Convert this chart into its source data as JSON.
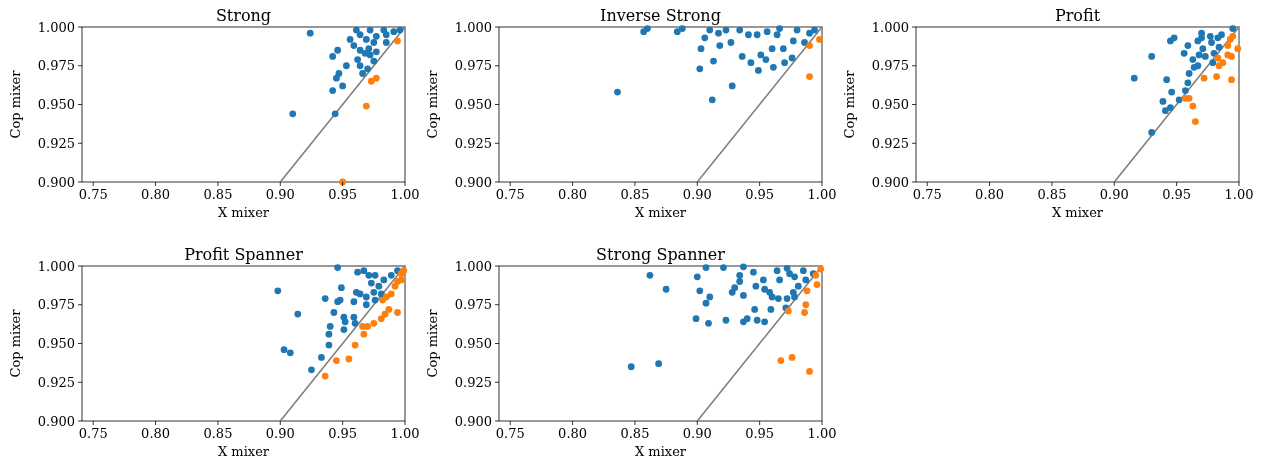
{
  "chart_data": [
    {
      "type": "scatter",
      "marker": "circle",
      "title": "Strong",
      "xlabel": "X mixer",
      "ylabel": "Cop mixer",
      "xlim": [
        0.741,
        1.0
      ],
      "ylim": [
        0.9,
        1.0
      ],
      "xticks": [
        {
          "value": 0.75,
          "label": "0.75"
        },
        {
          "value": 0.8,
          "label": "0.80"
        },
        {
          "value": 0.85,
          "label": "0.85"
        },
        {
          "value": 0.9,
          "label": "0.90"
        },
        {
          "value": 0.95,
          "label": "0.95"
        },
        {
          "value": 1.0,
          "label": "1.00"
        }
      ],
      "yticks": [
        {
          "value": 0.9,
          "label": "0.900"
        },
        {
          "value": 0.925,
          "label": "0.925"
        },
        {
          "value": 0.95,
          "label": "0.950"
        },
        {
          "value": 0.975,
          "label": "0.975"
        },
        {
          "value": 1.0,
          "label": "1.000"
        }
      ],
      "series": [
        {
          "color": "#1f77b4",
          "x": [
            0.924,
            0.91,
            0.944,
            0.942,
            0.95,
            0.945,
            0.947,
            0.953,
            0.942,
            0.946,
            0.966,
            0.97,
            0.964,
            0.962,
            0.975,
            0.972,
            0.956,
            0.959,
            0.964,
            0.969,
            0.975,
            0.977,
            0.964,
            0.971,
            0.985,
            0.985,
            0.991,
            0.961,
            0.972,
            0.983,
            0.996,
            0.977,
            0.968
          ],
          "values": [
            0.996,
            0.944,
            0.944,
            0.959,
            0.962,
            0.967,
            0.97,
            0.975,
            0.981,
            0.985,
            0.97,
            0.973,
            0.975,
            0.979,
            0.978,
            0.982,
            0.992,
            0.988,
            0.995,
            0.992,
            0.99,
            0.994,
            0.985,
            0.986,
            0.995,
            0.99,
            0.997,
            0.998,
            0.998,
            0.998,
            0.998,
            0.984,
            0.983
          ]
        },
        {
          "color": "#ff7f0e",
          "x": [
            0.994,
            0.973,
            0.977,
            0.969,
            0.95
          ],
          "values": [
            0.991,
            0.965,
            0.967,
            0.949,
            0.9
          ]
        },
        {
          "type": "line",
          "marker": "none",
          "color": "#808080",
          "x": [
            0.9,
            1.0
          ],
          "values": [
            0.9,
            1.0
          ]
        }
      ]
    },
    {
      "type": "scatter",
      "marker": "circle",
      "title": "Inverse Strong",
      "xlabel": "X mixer",
      "ylabel": "Cop mixer",
      "xlim": [
        0.741,
        1.0
      ],
      "ylim": [
        0.9,
        1.0
      ],
      "xticks": [
        {
          "value": 0.75,
          "label": "0.75"
        },
        {
          "value": 0.8,
          "label": "0.80"
        },
        {
          "value": 0.85,
          "label": "0.85"
        },
        {
          "value": 0.9,
          "label": "0.90"
        },
        {
          "value": 0.95,
          "label": "0.95"
        },
        {
          "value": 1.0,
          "label": "1.00"
        }
      ],
      "yticks": [
        {
          "value": 0.9,
          "label": "0.900"
        },
        {
          "value": 0.925,
          "label": "0.925"
        },
        {
          "value": 0.95,
          "label": "0.950"
        },
        {
          "value": 0.975,
          "label": "0.975"
        },
        {
          "value": 1.0,
          "label": "1.000"
        }
      ],
      "series": [
        {
          "color": "#1f77b4",
          "x": [
            0.836,
            0.912,
            0.928,
            0.902,
            0.913,
            0.903,
            0.906,
            0.917,
            0.918,
            0.927,
            0.936,
            0.943,
            0.949,
            0.951,
            0.955,
            0.961,
            0.97,
            0.96,
            0.969,
            0.977,
            0.976,
            0.986,
            0.964,
            0.956,
            0.948,
            0.941,
            0.934,
            0.923,
            0.91,
            0.884,
            0.857,
            0.86,
            0.888,
            0.98,
            0.99,
            0.994,
            0.966
          ],
          "values": [
            0.958,
            0.953,
            0.962,
            0.973,
            0.978,
            0.986,
            0.993,
            0.996,
            0.988,
            0.99,
            0.981,
            0.977,
            0.972,
            0.982,
            0.979,
            0.974,
            0.977,
            0.986,
            0.986,
            0.991,
            0.98,
            0.99,
            0.995,
            0.997,
            0.995,
            0.995,
            0.998,
            0.998,
            0.998,
            0.997,
            0.997,
            0.999,
            0.999,
            0.998,
            0.996,
            0.998,
            0.999
          ]
        },
        {
          "color": "#ff7f0e",
          "x": [
            0.998,
            0.99,
            0.99
          ],
          "values": [
            0.992,
            0.988,
            0.968
          ]
        },
        {
          "type": "line",
          "marker": "none",
          "color": "#808080",
          "x": [
            0.9,
            1.0
          ],
          "values": [
            0.9,
            1.0
          ]
        }
      ]
    },
    {
      "type": "scatter",
      "marker": "circle",
      "title": "Profit",
      "xlabel": "X mixer",
      "ylabel": "Cop mixer",
      "xlim": [
        0.741,
        1.0
      ],
      "ylim": [
        0.9,
        1.0
      ],
      "xticks": [
        {
          "value": 0.75,
          "label": "0.75"
        },
        {
          "value": 0.8,
          "label": "0.80"
        },
        {
          "value": 0.85,
          "label": "0.85"
        },
        {
          "value": 0.9,
          "label": "0.90"
        },
        {
          "value": 0.95,
          "label": "0.95"
        },
        {
          "value": 1.0,
          "label": "1.00"
        }
      ],
      "yticks": [
        {
          "value": 0.9,
          "label": "0.900"
        },
        {
          "value": 0.925,
          "label": "0.925"
        },
        {
          "value": 0.95,
          "label": "0.950"
        },
        {
          "value": 0.975,
          "label": "0.975"
        },
        {
          "value": 1.0,
          "label": "1.000"
        }
      ],
      "series": [
        {
          "color": "#1f77b4",
          "x": [
            0.916,
            0.93,
            0.93,
            0.939,
            0.941,
            0.942,
            0.945,
            0.946,
            0.945,
            0.948,
            0.952,
            0.957,
            0.959,
            0.96,
            0.956,
            0.959,
            0.964,
            0.967,
            0.968,
            0.967,
            0.97,
            0.97,
            0.971,
            0.973,
            0.977,
            0.978,
            0.98,
            0.983,
            0.986,
            0.984,
            0.979,
            0.995,
            0.963
          ],
          "values": [
            0.967,
            0.981,
            0.932,
            0.952,
            0.946,
            0.966,
            0.948,
            0.958,
            0.991,
            0.993,
            0.953,
            0.959,
            0.964,
            0.97,
            0.983,
            0.988,
            0.974,
            0.975,
            0.982,
            0.991,
            0.996,
            0.993,
            0.986,
            0.981,
            0.994,
            0.99,
            0.983,
            0.993,
            0.995,
            0.987,
            0.977,
            0.999,
            0.979
          ]
        },
        {
          "color": "#ff7f0e",
          "x": [
            0.965,
            0.963,
            0.957,
            0.96,
            0.972,
            0.982,
            0.994,
            0.984,
            0.987,
            0.983,
            0.991,
            0.994,
            0.999,
            0.991,
            0.993,
            0.995
          ],
          "values": [
            0.939,
            0.949,
            0.954,
            0.954,
            0.967,
            0.968,
            0.966,
            0.975,
            0.977,
            0.98,
            0.982,
            0.981,
            0.986,
            0.988,
            0.992,
            0.994
          ]
        },
        {
          "type": "line",
          "marker": "none",
          "color": "#808080",
          "x": [
            0.9,
            1.0
          ],
          "values": [
            0.9,
            1.0
          ]
        }
      ]
    },
    {
      "type": "scatter",
      "marker": "circle",
      "title": "Profit Spanner",
      "xlabel": "X mixer",
      "ylabel": "Cop mixer",
      "xlim": [
        0.741,
        1.0
      ],
      "ylim": [
        0.9,
        1.0
      ],
      "xticks": [
        {
          "value": 0.75,
          "label": "0.75"
        },
        {
          "value": 0.8,
          "label": "0.80"
        },
        {
          "value": 0.85,
          "label": "0.85"
        },
        {
          "value": 0.9,
          "label": "0.90"
        },
        {
          "value": 0.95,
          "label": "0.95"
        },
        {
          "value": 1.0,
          "label": "1.00"
        }
      ],
      "yticks": [
        {
          "value": 0.9,
          "label": "0.900"
        },
        {
          "value": 0.925,
          "label": "0.925"
        },
        {
          "value": 0.95,
          "label": "0.950"
        },
        {
          "value": 0.975,
          "label": "0.975"
        },
        {
          "value": 1.0,
          "label": "1.000"
        }
      ],
      "series": [
        {
          "color": "#1f77b4",
          "x": [
            0.898,
            0.914,
            0.903,
            0.908,
            0.925,
            0.933,
            0.939,
            0.939,
            0.94,
            0.943,
            0.936,
            0.949,
            0.946,
            0.948,
            0.951,
            0.952,
            0.951,
            0.959,
            0.96,
            0.959,
            0.961,
            0.964,
            0.962,
            0.967,
            0.971,
            0.976,
            0.973,
            0.969,
            0.969,
            0.975,
            0.979,
            0.976,
            0.983,
            0.989,
            0.994,
            0.946,
            0.981
          ],
          "values": [
            0.984,
            0.969,
            0.946,
            0.944,
            0.933,
            0.941,
            0.949,
            0.956,
            0.961,
            0.97,
            0.979,
            0.986,
            0.977,
            0.978,
            0.967,
            0.964,
            0.959,
            0.967,
            0.963,
            0.977,
            0.983,
            0.982,
            0.996,
            0.997,
            0.994,
            0.994,
            0.989,
            0.98,
            0.975,
            0.983,
            0.987,
            0.978,
            0.991,
            0.994,
            0.997,
            0.999,
            0.982
          ]
        },
        {
          "color": "#ff7f0e",
          "x": [
            0.936,
            0.945,
            0.955,
            0.96,
            0.967,
            0.97,
            0.966,
            0.975,
            0.981,
            0.984,
            0.987,
            0.994,
            0.982,
            0.985,
            0.989,
            0.992,
            0.994,
            0.997,
            0.997,
            0.999
          ],
          "values": [
            0.929,
            0.939,
            0.94,
            0.949,
            0.956,
            0.961,
            0.961,
            0.963,
            0.966,
            0.969,
            0.972,
            0.97,
            0.978,
            0.98,
            0.982,
            0.987,
            0.99,
            0.991,
            0.995,
            0.997
          ]
        },
        {
          "type": "line",
          "marker": "none",
          "color": "#808080",
          "x": [
            0.9,
            1.0
          ],
          "values": [
            0.9,
            1.0
          ]
        }
      ]
    },
    {
      "type": "scatter",
      "marker": "circle",
      "title": "Strong Spanner",
      "xlabel": "X mixer",
      "ylabel": "Cop mixer",
      "xlim": [
        0.741,
        1.0
      ],
      "ylim": [
        0.9,
        1.0
      ],
      "xticks": [
        {
          "value": 0.75,
          "label": "0.75"
        },
        {
          "value": 0.8,
          "label": "0.80"
        },
        {
          "value": 0.85,
          "label": "0.85"
        },
        {
          "value": 0.9,
          "label": "0.90"
        },
        {
          "value": 0.95,
          "label": "0.95"
        },
        {
          "value": 1.0,
          "label": "1.00"
        }
      ],
      "yticks": [
        {
          "value": 0.9,
          "label": "0.900"
        },
        {
          "value": 0.925,
          "label": "0.925"
        },
        {
          "value": 0.95,
          "label": "0.950"
        },
        {
          "value": 0.975,
          "label": "0.975"
        },
        {
          "value": 1.0,
          "label": "1.000"
        }
      ],
      "series": [
        {
          "color": "#1f77b4",
          "x": [
            0.847,
            0.869,
            0.862,
            0.875,
            0.899,
            0.909,
            0.907,
            0.91,
            0.902,
            0.9,
            0.923,
            0.937,
            0.94,
            0.948,
            0.954,
            0.946,
            0.959,
            0.971,
            0.928,
            0.93,
            0.937,
            0.934,
            0.934,
            0.947,
            0.954,
            0.958,
            0.96,
            0.965,
            0.972,
            0.977,
            0.981,
            0.953,
            0.966,
            0.978,
            0.987,
            0.945,
            0.964,
            0.974,
            0.985,
            0.993,
            0.907,
            0.921,
            0.937,
            0.972,
            0.978
          ],
          "values": [
            0.935,
            0.937,
            0.994,
            0.985,
            0.966,
            0.963,
            0.976,
            0.98,
            0.984,
            0.993,
            0.965,
            0.964,
            0.966,
            0.965,
            0.964,
            0.972,
            0.972,
            0.973,
            0.983,
            0.986,
            0.981,
            0.99,
            0.994,
            0.987,
            0.985,
            0.983,
            0.98,
            0.979,
            0.979,
            0.983,
            0.987,
            0.991,
            0.991,
            0.993,
            0.991,
            0.996,
            0.997,
            0.995,
            0.997,
            0.995,
            0.999,
            0.999,
            0.9995,
            0.9985,
            0.98
          ]
        },
        {
          "color": "#ff7f0e",
          "x": [
            0.967,
            0.976,
            0.99,
            0.986,
            0.987,
            0.973,
            0.988,
            0.996,
            0.995,
            0.999
          ],
          "values": [
            0.939,
            0.941,
            0.932,
            0.97,
            0.975,
            0.971,
            0.984,
            0.988,
            0.994,
            0.998
          ]
        },
        {
          "type": "line",
          "marker": "none",
          "color": "#808080",
          "x": [
            0.9,
            1.0
          ],
          "values": [
            0.9,
            1.0
          ]
        }
      ]
    }
  ]
}
